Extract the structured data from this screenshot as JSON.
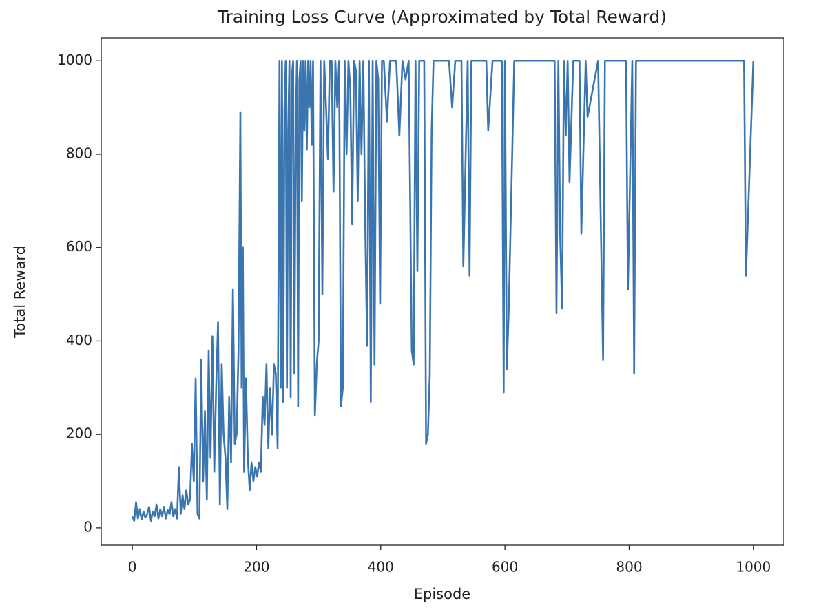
{
  "chart_data": {
    "type": "line",
    "title": "Training Loss Curve (Approximated by Total Reward)",
    "x_label": "Episode",
    "y_label": "Total Reward",
    "color": "#3a75b0",
    "xlim": [
      -50,
      1049
    ],
    "ylim": [
      -37,
      1049
    ],
    "xticks": [
      0,
      200,
      400,
      600,
      800,
      1000
    ],
    "yticks": [
      0,
      200,
      400,
      600,
      800,
      1000
    ],
    "x": [
      0,
      3,
      6,
      9,
      12,
      15,
      18,
      21,
      24,
      27,
      30,
      33,
      36,
      39,
      42,
      45,
      48,
      51,
      54,
      57,
      60,
      63,
      66,
      69,
      72,
      75,
      78,
      81,
      84,
      87,
      90,
      93,
      96,
      99,
      102,
      105,
      108,
      111,
      114,
      117,
      120,
      123,
      126,
      129,
      132,
      135,
      138,
      141,
      144,
      147,
      150,
      153,
      156,
      159,
      162,
      165,
      168,
      171,
      174,
      176,
      178,
      180,
      183,
      186,
      189,
      192,
      195,
      198,
      201,
      204,
      207,
      210,
      213,
      216,
      219,
      222,
      225,
      228,
      231,
      234,
      237,
      239,
      241,
      243,
      245,
      247,
      249,
      251,
      253,
      255,
      257,
      259,
      261,
      263,
      265,
      267,
      269,
      271,
      273,
      275,
      277,
      279,
      281,
      283,
      285,
      287,
      289,
      291,
      294,
      297,
      300,
      303,
      306,
      309,
      312,
      315,
      318,
      321,
      324,
      327,
      330,
      333,
      336,
      339,
      342,
      345,
      348,
      351,
      354,
      357,
      360,
      363,
      366,
      369,
      372,
      375,
      378,
      381,
      384,
      387,
      390,
      393,
      396,
      399,
      402,
      405,
      410,
      415,
      420,
      425,
      430,
      435,
      440,
      445,
      450,
      453,
      456,
      459,
      462,
      466,
      470,
      473,
      476,
      479,
      482,
      485,
      490,
      495,
      500,
      510,
      515,
      520,
      530,
      533,
      540,
      543,
      546,
      560,
      570,
      573,
      580,
      595,
      598,
      600,
      603,
      606,
      615,
      650,
      680,
      683,
      686,
      689,
      692,
      695,
      698,
      701,
      704,
      710,
      720,
      723,
      730,
      733,
      750,
      755,
      758,
      761,
      770,
      795,
      798,
      805,
      808,
      811,
      900,
      985,
      988,
      1000
    ],
    "values": [
      25,
      15,
      55,
      20,
      40,
      18,
      35,
      22,
      30,
      45,
      15,
      35,
      25,
      50,
      20,
      40,
      25,
      45,
      20,
      38,
      30,
      55,
      25,
      40,
      20,
      130,
      30,
      70,
      40,
      80,
      50,
      60,
      180,
      100,
      320,
      30,
      20,
      360,
      100,
      250,
      60,
      380,
      150,
      410,
      120,
      300,
      440,
      50,
      350,
      200,
      150,
      40,
      280,
      140,
      510,
      180,
      200,
      380,
      890,
      300,
      600,
      120,
      320,
      150,
      80,
      140,
      100,
      130,
      110,
      140,
      120,
      280,
      220,
      350,
      170,
      300,
      200,
      350,
      330,
      170,
      1000,
      300,
      1000,
      270,
      900,
      1000,
      300,
      850,
      1000,
      280,
      970,
      1000,
      330,
      840,
      1000,
      260,
      960,
      1000,
      700,
      1000,
      850,
      1000,
      810,
      1000,
      900,
      1000,
      820,
      1000,
      240,
      350,
      400,
      1000,
      500,
      1000,
      900,
      790,
      1000,
      1000,
      720,
      1000,
      900,
      1000,
      260,
      300,
      1000,
      800,
      1000,
      940,
      650,
      1000,
      980,
      700,
      1000,
      800,
      1000,
      650,
      390,
      1000,
      270,
      1000,
      350,
      1000,
      960,
      480,
      1000,
      1000,
      870,
      1000,
      1000,
      1000,
      840,
      1000,
      960,
      1000,
      380,
      350,
      1000,
      550,
      1000,
      1000,
      1000,
      180,
      200,
      330,
      850,
      1000,
      1000,
      1000,
      1000,
      1000,
      900,
      1000,
      1000,
      560,
      1000,
      540,
      1000,
      1000,
      1000,
      850,
      1000,
      1000,
      290,
      1000,
      340,
      460,
      1000,
      1000,
      1000,
      460,
      1000,
      620,
      470,
      1000,
      840,
      1000,
      740,
      1000,
      1000,
      630,
      1000,
      880,
      1000,
      600,
      360,
      1000,
      1000,
      1000,
      510,
      1000,
      330,
      1000,
      1000,
      1000,
      540,
      1000
    ]
  }
}
